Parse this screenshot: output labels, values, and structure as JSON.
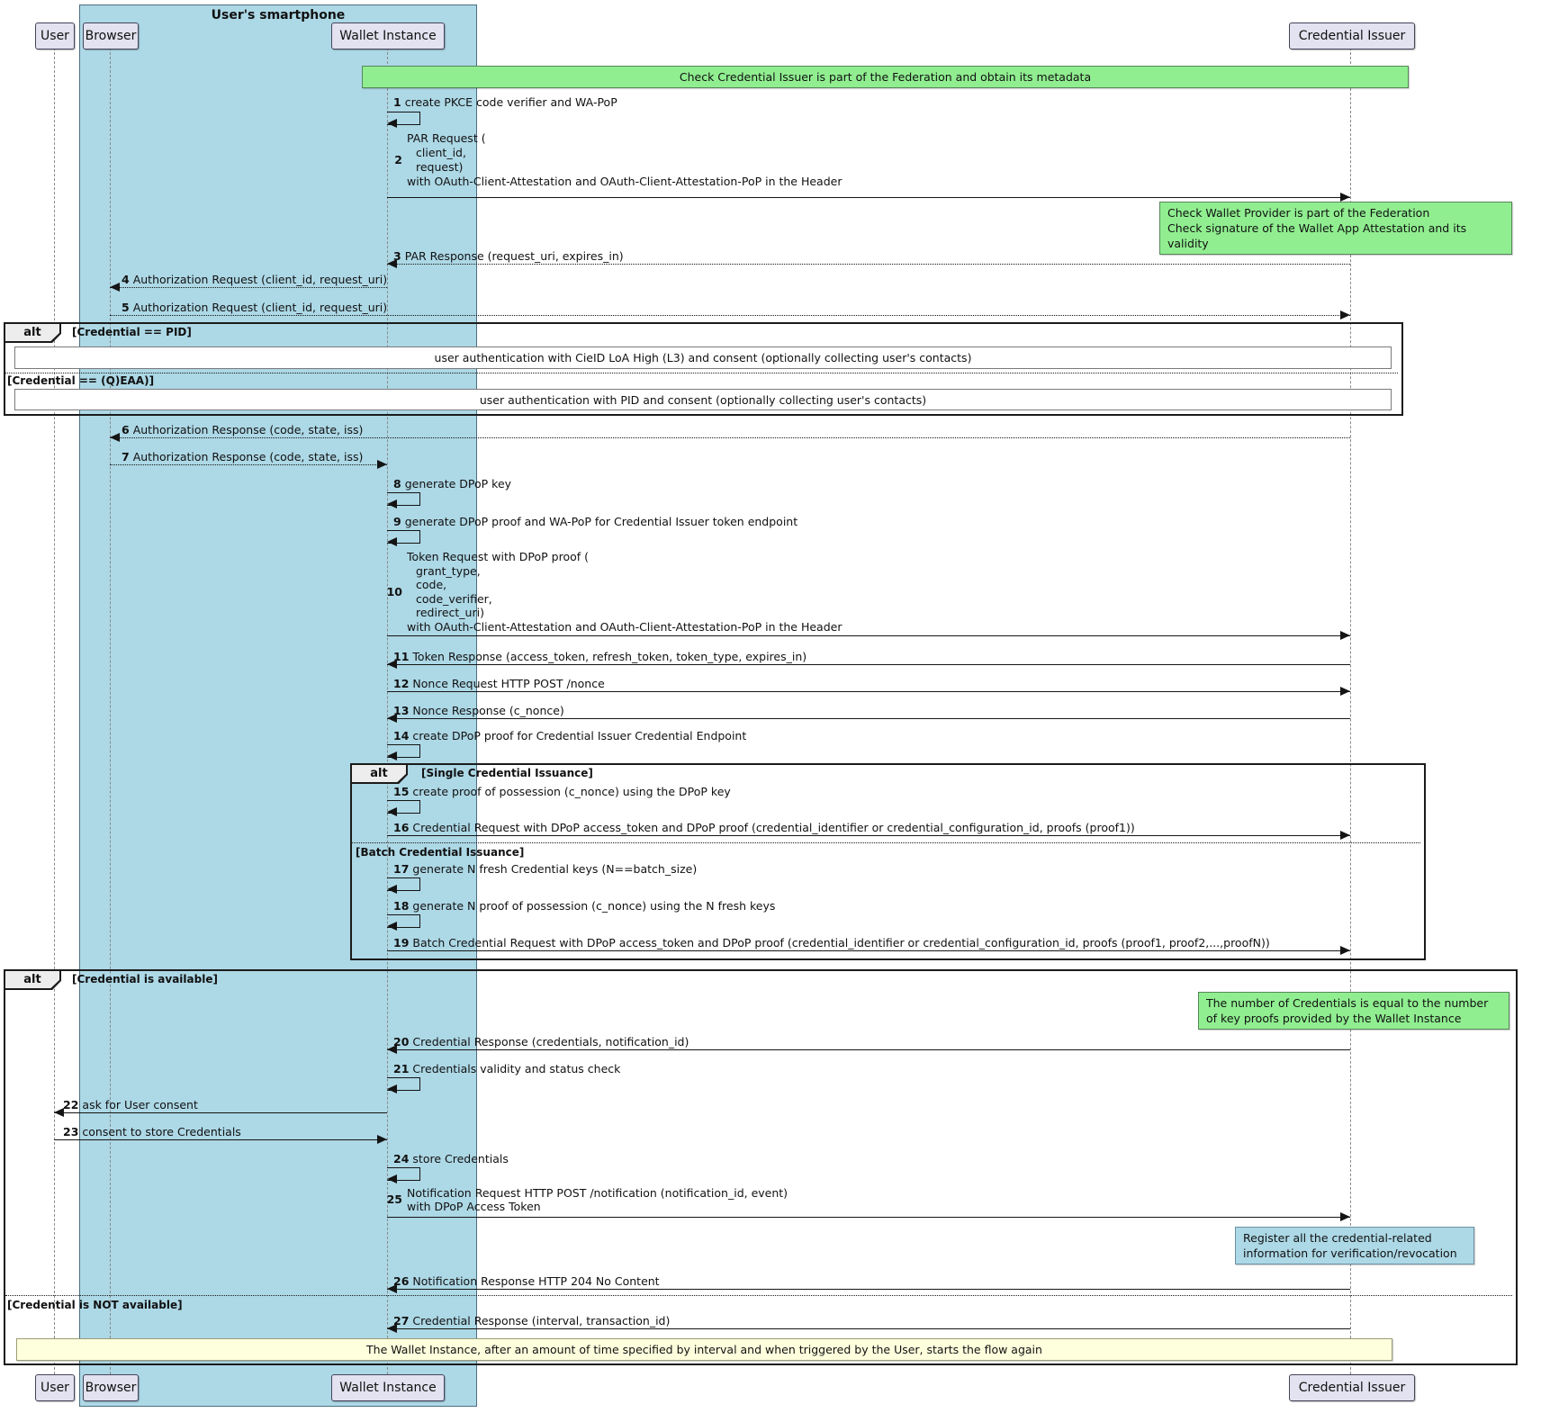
{
  "colors": {
    "smartphone_bg": "#ADD8E6",
    "participant_fill": "#E2E2F0",
    "note_green": "#90EE90",
    "note_blue": "#ADD8E6",
    "note_yellow": "#FEFFDD",
    "frame_border": "#1b1b1b",
    "lifeline_gray": "#8a8a8a"
  },
  "frame_title": "User's smartphone",
  "participants": [
    {
      "id": "user",
      "label": "User"
    },
    {
      "id": "browser",
      "label": "Browser"
    },
    {
      "id": "wallet",
      "label": "Wallet Instance"
    },
    {
      "id": "issuer",
      "label": "Credential Issuer"
    }
  ],
  "alt_frames": [
    {
      "operator": "alt",
      "conditions": [
        "[Credential == PID]",
        "[Credential == (Q)EAA)]"
      ],
      "ref_boxes": [
        "user authentication with CieID LoA High (L3) and consent (optionally collecting user's contacts)",
        "user authentication with PID and consent (optionally collecting user's contacts)"
      ]
    },
    {
      "operator": "alt",
      "conditions": [
        "[Single Credential Issuance]",
        "[Batch Credential Issuance]"
      ]
    },
    {
      "operator": "alt",
      "conditions": [
        "[Credential is available]",
        "[Credential is NOT available]"
      ]
    }
  ],
  "notes": [
    {
      "id": "note-federation-metadata",
      "color": "green",
      "lines": [
        "Check Credential Issuer is part of the Federation and obtain its metadata"
      ]
    },
    {
      "id": "note-wallet-provider-check",
      "color": "green",
      "lines": [
        "Check Wallet Provider is part of the Federation",
        "Check signature of the Wallet App Attestation and its validity"
      ]
    },
    {
      "id": "note-credentials-number",
      "color": "green",
      "lines": [
        "The number of Credentials is equal to the number",
        "of key proofs provided by the Wallet Instance"
      ]
    },
    {
      "id": "note-register-info",
      "color": "blue",
      "lines": [
        "Register all the credential-related",
        "information for verification/revocation"
      ]
    },
    {
      "id": "note-flow-restart",
      "color": "yellow",
      "lines": [
        "The Wallet Instance, after an amount of time specified by interval and when triggered by the User, starts the flow again"
      ]
    }
  ],
  "messages": [
    {
      "num": "1",
      "from": "wallet",
      "to": "wallet",
      "kind": "self",
      "text": "create PKCE code verifier and WA-PoP"
    },
    {
      "num": "2",
      "from": "wallet",
      "to": "issuer",
      "kind": "solid",
      "lines": [
        "PAR Request (",
        "client_id,",
        "request)",
        "with OAuth-Client-Attestation and OAuth-Client-Attestation-PoP in the Header"
      ]
    },
    {
      "num": "3",
      "from": "issuer",
      "to": "wallet",
      "kind": "dotted",
      "text": "PAR Response (request_uri, expires_in)"
    },
    {
      "num": "4",
      "from": "wallet",
      "to": "browser",
      "kind": "dotted",
      "text": "Authorization Request (client_id, request_uri)"
    },
    {
      "num": "5",
      "from": "browser",
      "to": "issuer",
      "kind": "dotted",
      "text": "Authorization Request (client_id, request_uri)"
    },
    {
      "num": "6",
      "from": "issuer",
      "to": "browser",
      "kind": "dotted",
      "text": "Authorization Response (code, state, iss)"
    },
    {
      "num": "7",
      "from": "browser",
      "to": "wallet",
      "kind": "dotted",
      "text": "Authorization Response (code, state, iss)"
    },
    {
      "num": "8",
      "from": "wallet",
      "to": "wallet",
      "kind": "self",
      "text": "generate DPoP key"
    },
    {
      "num": "9",
      "from": "wallet",
      "to": "wallet",
      "kind": "self",
      "text": "generate DPoP proof and WA-PoP for Credential Issuer token endpoint"
    },
    {
      "num": "10",
      "from": "wallet",
      "to": "issuer",
      "kind": "solid",
      "lines": [
        "Token Request with DPoP proof (",
        "grant_type,",
        "code,",
        "code_verifier,",
        "redirect_uri)",
        "with OAuth-Client-Attestation and OAuth-Client-Attestation-PoP in the Header"
      ]
    },
    {
      "num": "11",
      "from": "issuer",
      "to": "wallet",
      "kind": "solid",
      "text": "Token Response (access_token, refresh_token, token_type, expires_in)"
    },
    {
      "num": "12",
      "from": "wallet",
      "to": "issuer",
      "kind": "solid",
      "text": "Nonce Request HTTP POST /nonce"
    },
    {
      "num": "13",
      "from": "issuer",
      "to": "wallet",
      "kind": "solid",
      "text": "Nonce Response (c_nonce)"
    },
    {
      "num": "14",
      "from": "wallet",
      "to": "wallet",
      "kind": "self",
      "text": "create DPoP proof for Credential Issuer Credential Endpoint"
    },
    {
      "num": "15",
      "from": "wallet",
      "to": "wallet",
      "kind": "self",
      "text": "create proof of possession (c_nonce) using the DPoP key"
    },
    {
      "num": "16",
      "from": "wallet",
      "to": "issuer",
      "kind": "solid",
      "text": "Credential Request with DPoP access_token and DPoP proof (credential_identifier or credential_configuration_id, proofs (proof1))"
    },
    {
      "num": "17",
      "from": "wallet",
      "to": "wallet",
      "kind": "self",
      "text": "generate N fresh Credential keys (N==batch_size)"
    },
    {
      "num": "18",
      "from": "wallet",
      "to": "wallet",
      "kind": "self",
      "text": "generate N proof of possession (c_nonce) using the N fresh keys"
    },
    {
      "num": "19",
      "from": "wallet",
      "to": "issuer",
      "kind": "solid",
      "text": "Batch Credential Request with DPoP access_token and DPoP proof (credential_identifier or credential_configuration_id, proofs (proof1, proof2,...,proofN))"
    },
    {
      "num": "20",
      "from": "issuer",
      "to": "wallet",
      "kind": "solid",
      "text": "Credential Response (credentials, notification_id)"
    },
    {
      "num": "21",
      "from": "wallet",
      "to": "wallet",
      "kind": "self",
      "text": "Credentials validity and status check"
    },
    {
      "num": "22",
      "from": "wallet",
      "to": "user",
      "kind": "solid",
      "text": "ask for User consent"
    },
    {
      "num": "23",
      "from": "user",
      "to": "wallet",
      "kind": "solid",
      "text": "consent to store Credentials"
    },
    {
      "num": "24",
      "from": "wallet",
      "to": "wallet",
      "kind": "self",
      "text": "store Credentials"
    },
    {
      "num": "25",
      "from": "wallet",
      "to": "issuer",
      "kind": "solid",
      "lines": [
        "Notification Request HTTP POST /notification (notification_id, event)",
        "with DPoP Access Token"
      ]
    },
    {
      "num": "26",
      "from": "issuer",
      "to": "wallet",
      "kind": "solid",
      "text": "Notification Response HTTP 204 No Content"
    },
    {
      "num": "27",
      "from": "issuer",
      "to": "wallet",
      "kind": "solid",
      "text": "Credential Response (interval, transaction_id)"
    }
  ]
}
